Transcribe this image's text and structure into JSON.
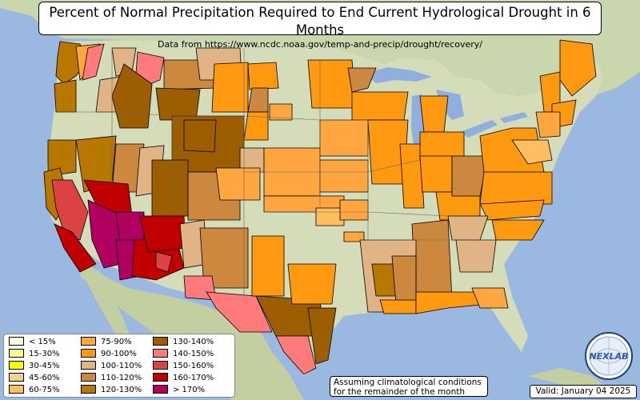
{
  "header": {
    "title": "Percent of Normal Precipitation Required to End Current Hydrological Drought in 6 Months",
    "subtitle": "Data from https://www.ncdc.noaa.gov/temp-and-precip/drought/recovery/"
  },
  "legend": {
    "items": [
      {
        "label": "< 15%",
        "color": "#ffffe0"
      },
      {
        "label": "15-30%",
        "color": "#ffff99"
      },
      {
        "label": "30-45%",
        "color": "#ffff00"
      },
      {
        "label": "45-60%",
        "color": "#f7cf90"
      },
      {
        "label": "60-75%",
        "color": "#ffbf60"
      },
      {
        "label": "75-90%",
        "color": "#ffa640"
      },
      {
        "label": "90-100%",
        "color": "#ff9910"
      },
      {
        "label": "100-110%",
        "color": "#e0b484"
      },
      {
        "label": "110-120%",
        "color": "#cd8840"
      },
      {
        "label": "120-130%",
        "color": "#b87800"
      },
      {
        "label": "130-140%",
        "color": "#9c5e00"
      },
      {
        "label": "140-150%",
        "color": "#ff7b7b"
      },
      {
        "label": "150-160%",
        "color": "#dd4242"
      },
      {
        "label": "160-170%",
        "color": "#c00000"
      },
      {
        "label": "> 170%",
        "color": "#b00060"
      }
    ]
  },
  "note": {
    "line1": "Assuming climatological conditions",
    "line2": "for the remainder of the month"
  },
  "valid": "Valid: January 04 2025",
  "logo": {
    "text": "NEXLAB"
  },
  "colors": {
    "ocean": "#9bb8e0",
    "land": "#cfd9b4",
    "lakes": "#8fb0de"
  }
}
